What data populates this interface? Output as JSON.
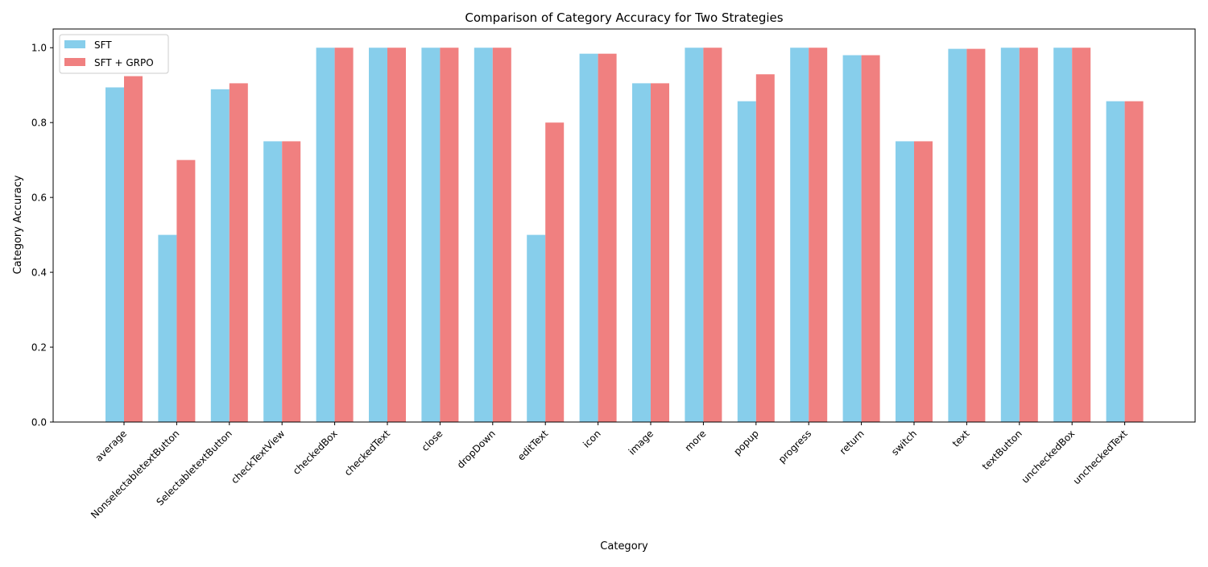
{
  "chart_data": {
    "type": "bar",
    "title": "Comparison of Category Accuracy for Two Strategies",
    "xlabel": "Category",
    "ylabel": "Category Accuracy",
    "ylim": [
      0,
      1.05
    ],
    "yticks": [
      "0.0",
      "0.2",
      "0.4",
      "0.6",
      "0.8",
      "1.0"
    ],
    "grid": false,
    "legend_position": "top-left",
    "categories": [
      "average",
      "NonselectabletextButton",
      "SelectabletextButton",
      "checkTextView",
      "checkedBox",
      "checkedText",
      "close",
      "dropDown",
      "editText",
      "icon",
      "image",
      "more",
      "popup",
      "progress",
      "return",
      "switch",
      "text",
      "textButton",
      "uncheckedBox",
      "uncheckedText"
    ],
    "series": [
      {
        "name": "SFT",
        "color": "#87ceeb",
        "values": [
          0.894,
          0.5,
          0.889,
          0.75,
          1.0,
          1.0,
          1.0,
          1.0,
          0.5,
          0.984,
          0.905,
          1.0,
          0.857,
          1.0,
          0.98,
          0.75,
          0.997,
          1.0,
          1.0,
          0.857
        ]
      },
      {
        "name": "SFT + GRPO",
        "color": "#f08080",
        "values": [
          0.924,
          0.7,
          0.905,
          0.75,
          1.0,
          1.0,
          1.0,
          1.0,
          0.8,
          0.984,
          0.905,
          1.0,
          0.929,
          1.0,
          0.98,
          0.75,
          0.997,
          1.0,
          1.0,
          0.857
        ]
      }
    ]
  }
}
